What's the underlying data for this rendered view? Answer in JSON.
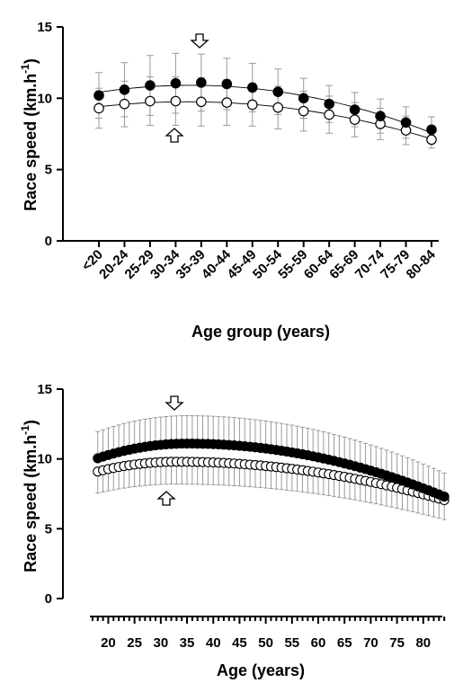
{
  "chart_data": [
    {
      "type": "scatter",
      "xlabel": "Age group (years)",
      "ylabel": "Race speed (km.h-1)",
      "ylabel_main": "Race speed (km.h",
      "ylabel_sup": "-1",
      "ylabel_close": ")",
      "ylim": [
        0,
        15
      ],
      "yticks": [
        0,
        5,
        10,
        15
      ],
      "categories": [
        "<20",
        "20-24",
        "25-29",
        "30-34",
        "35-39",
        "40-44",
        "45-49",
        "50-54",
        "55-59",
        "60-64",
        "65-69",
        "70-74",
        "75-79",
        "80-84"
      ],
      "series": [
        {
          "marker": "filled",
          "values": [
            10.2,
            10.6,
            10.9,
            11.05,
            11.1,
            11.0,
            10.75,
            10.45,
            10.0,
            9.6,
            9.2,
            8.75,
            8.3,
            7.8
          ],
          "err": [
            1.6,
            1.9,
            2.1,
            2.1,
            2.0,
            1.8,
            1.7,
            1.6,
            1.4,
            1.3,
            1.2,
            1.2,
            1.1,
            0.9
          ]
        },
        {
          "marker": "open",
          "values": [
            9.3,
            9.6,
            9.8,
            9.8,
            9.75,
            9.7,
            9.55,
            9.35,
            9.1,
            8.85,
            8.5,
            8.2,
            7.75,
            7.1
          ],
          "err": [
            1.4,
            1.6,
            1.7,
            1.7,
            1.7,
            1.6,
            1.5,
            1.5,
            1.4,
            1.3,
            1.2,
            1.1,
            1.0,
            0.6
          ]
        }
      ]
    },
    {
      "type": "scatter",
      "xlabel": "Age (years)",
      "ylabel": "Race speed (km.h-1)",
      "ylabel_main": "Race speed (km.h",
      "ylabel_sup": "-1",
      "ylabel_close": ")",
      "ylim": [
        0,
        15
      ],
      "yticks": [
        0,
        5,
        10,
        15
      ],
      "xlim": [
        16.5,
        85
      ],
      "xticks": [
        20,
        25,
        30,
        35,
        40,
        45,
        50,
        55,
        60,
        65,
        70,
        75,
        80
      ],
      "x": [
        18,
        84
      ],
      "series": [
        {
          "marker": "filled",
          "description_fit": "quadratic",
          "peak_age": 35,
          "peak_value": 11.1,
          "start_value": 10.05,
          "end_value": 7.3,
          "err": 2.0
        },
        {
          "marker": "open",
          "description_fit": "quadratic",
          "peak_age": 33,
          "peak_value": 9.8,
          "start_value": 9.1,
          "end_value": 7.05,
          "err": 1.6
        }
      ]
    }
  ]
}
